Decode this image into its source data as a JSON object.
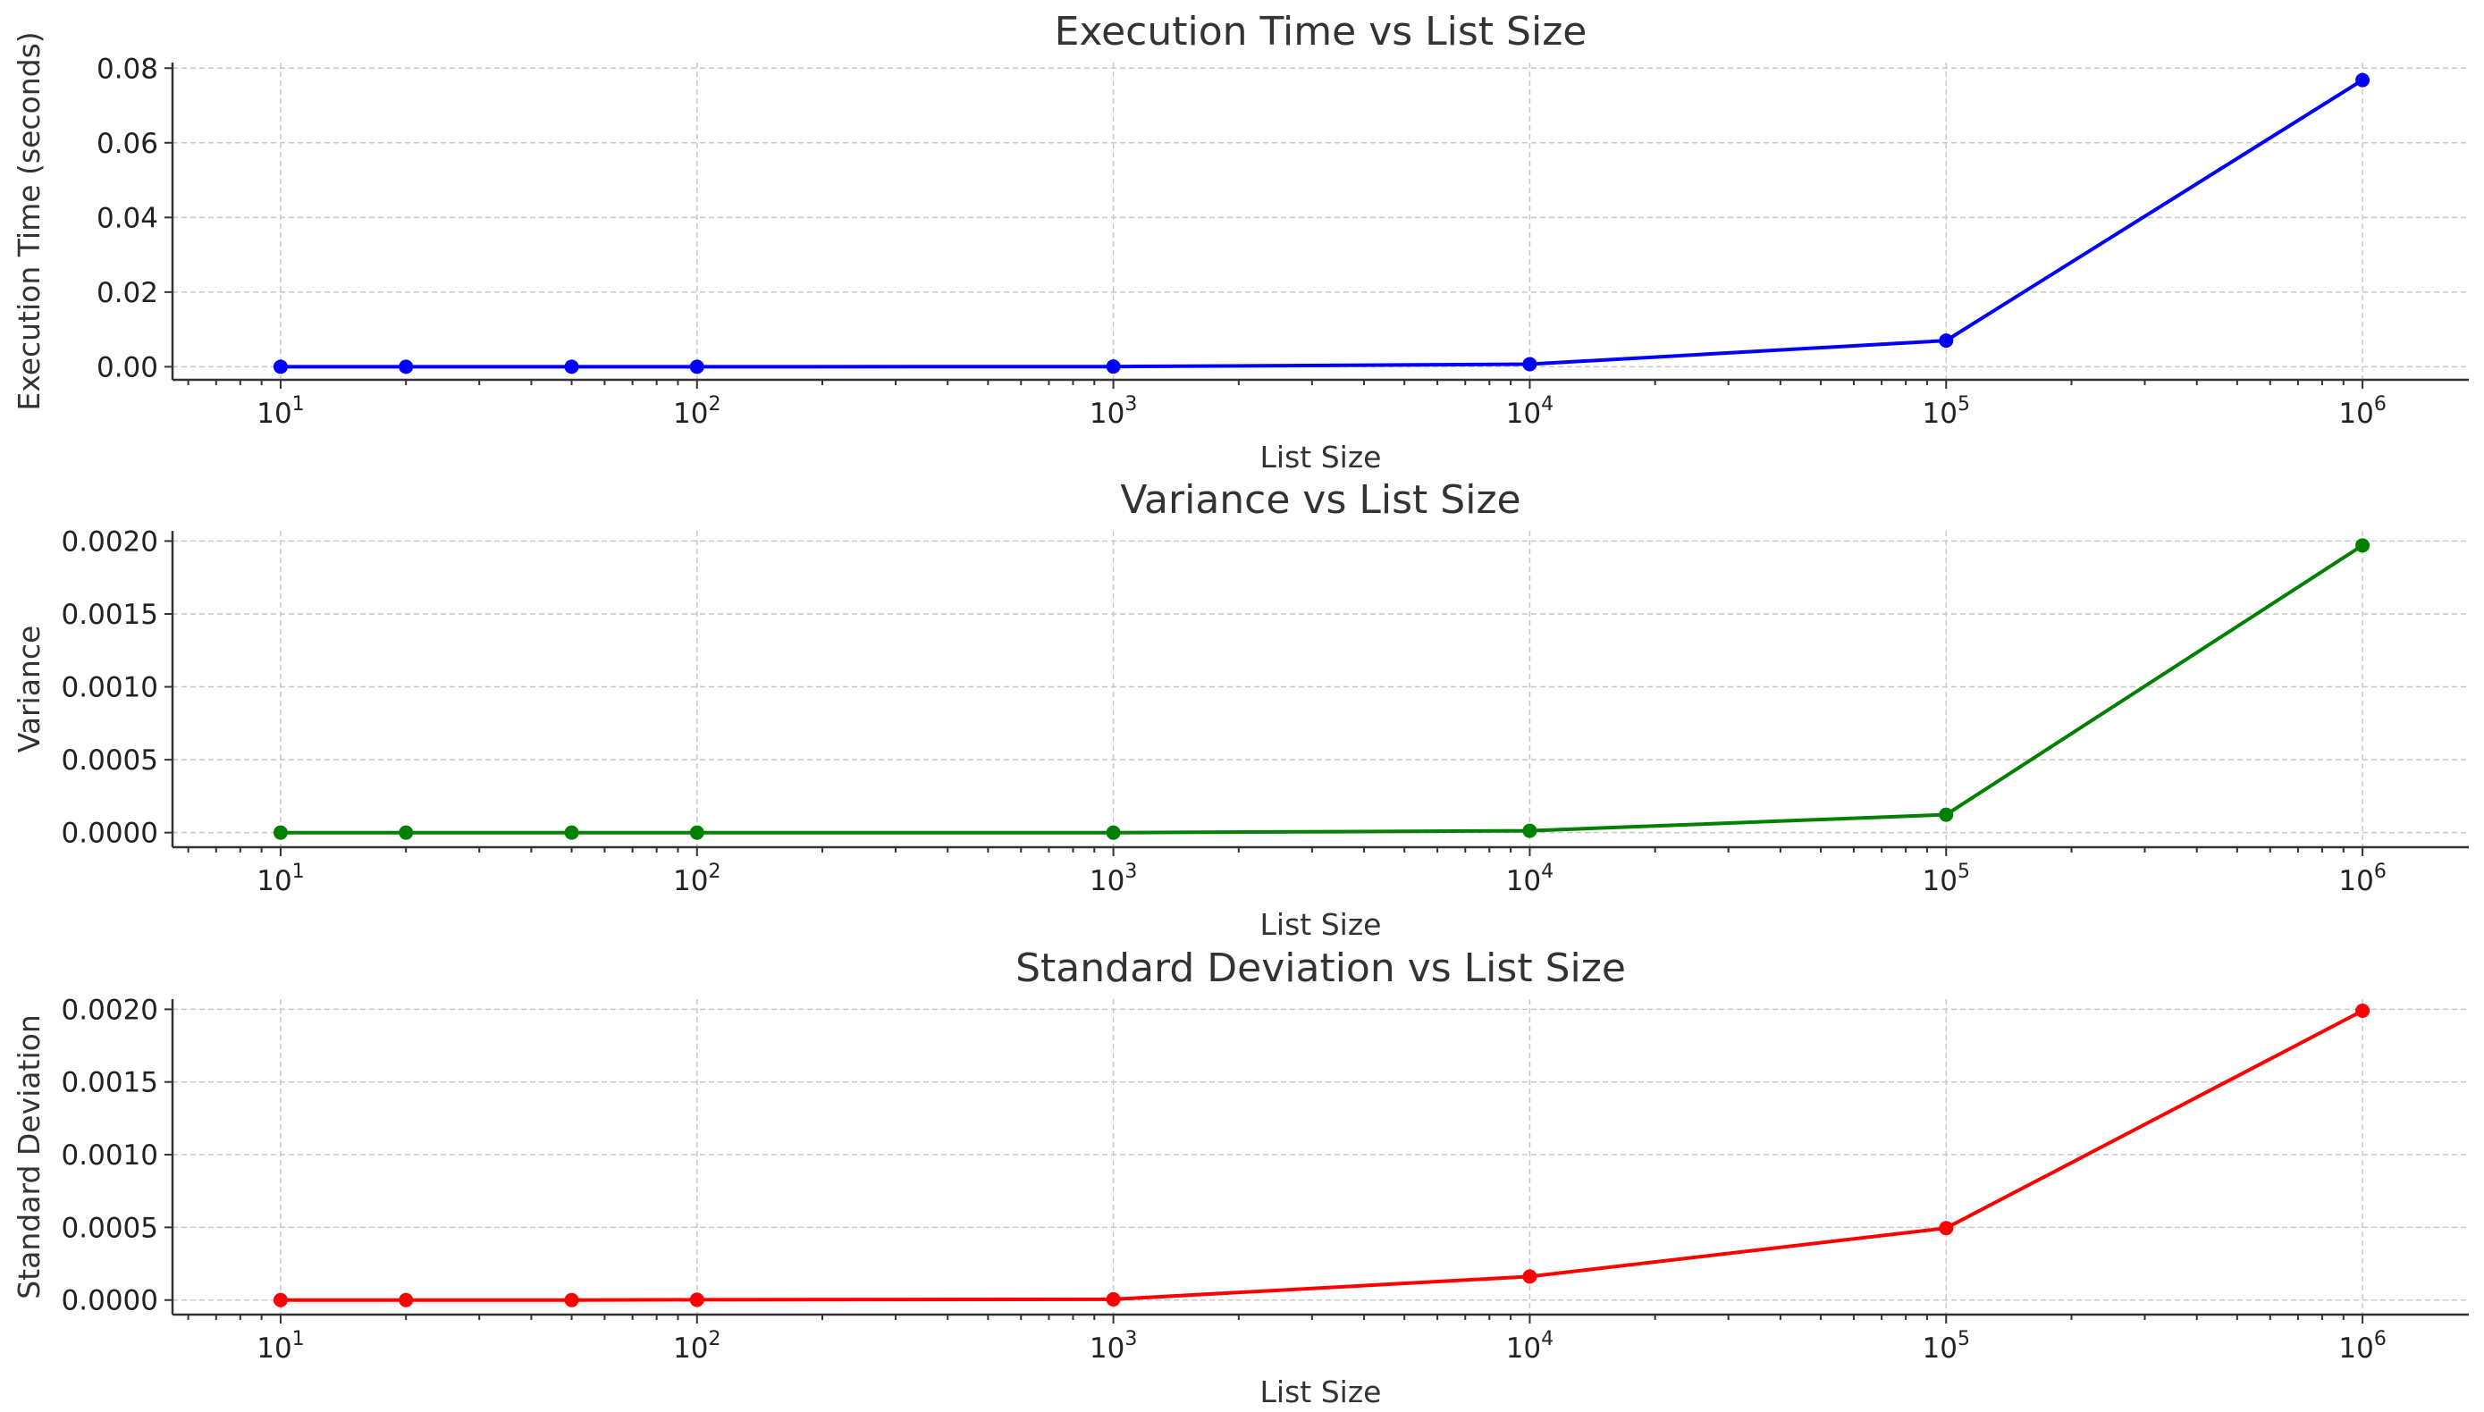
{
  "chart_data": [
    {
      "type": "line",
      "title": "Execution Time vs List Size",
      "xlabel": "List Size",
      "ylabel": "Execution Time (seconds)",
      "xscale": "log",
      "xlim": [
        5.5,
        1800000
      ],
      "ylim": [
        -0.0035,
        0.0815
      ],
      "xticks": [
        {
          "value": 10,
          "base": "10",
          "exp": "1"
        },
        {
          "value": 100,
          "base": "10",
          "exp": "2"
        },
        {
          "value": 1000,
          "base": "10",
          "exp": "3"
        },
        {
          "value": 10000,
          "base": "10",
          "exp": "4"
        },
        {
          "value": 100000,
          "base": "10",
          "exp": "5"
        },
        {
          "value": 1000000,
          "base": "10",
          "exp": "6"
        }
      ],
      "yticks": [
        {
          "value": 0.0,
          "label": "0.00"
        },
        {
          "value": 0.02,
          "label": "0.02"
        },
        {
          "value": 0.04,
          "label": "0.04"
        },
        {
          "value": 0.06,
          "label": "0.06"
        },
        {
          "value": 0.08,
          "label": "0.08"
        }
      ],
      "grid": true,
      "series": [
        {
          "color": "#0000ff",
          "x": [
            10,
            20,
            50,
            100,
            1000,
            10000,
            100000,
            1000000
          ],
          "y": [
            0.0,
            0.0,
            0.0,
            0.0,
            5e-05,
            0.0007,
            0.007,
            0.0768
          ]
        }
      ]
    },
    {
      "type": "line",
      "title": "Variance vs List Size",
      "xlabel": "List Size",
      "ylabel": "Variance",
      "xscale": "log",
      "xlim": [
        5.5,
        1800000
      ],
      "ylim": [
        -0.0001,
        0.00207
      ],
      "xticks": [
        {
          "value": 10,
          "base": "10",
          "exp": "1"
        },
        {
          "value": 100,
          "base": "10",
          "exp": "2"
        },
        {
          "value": 1000,
          "base": "10",
          "exp": "3"
        },
        {
          "value": 10000,
          "base": "10",
          "exp": "4"
        },
        {
          "value": 100000,
          "base": "10",
          "exp": "5"
        },
        {
          "value": 1000000,
          "base": "10",
          "exp": "6"
        }
      ],
      "yticks": [
        {
          "value": 0.0,
          "label": "0.0000"
        },
        {
          "value": 0.0005,
          "label": "0.0005"
        },
        {
          "value": 0.001,
          "label": "0.0010"
        },
        {
          "value": 0.0015,
          "label": "0.0015"
        },
        {
          "value": 0.002,
          "label": "0.0020"
        }
      ],
      "grid": true,
      "series": [
        {
          "color": "#008000",
          "x": [
            10,
            20,
            50,
            100,
            1000,
            10000,
            100000,
            1000000
          ],
          "y": [
            0.0,
            0.0,
            0.0,
            0.0,
            0.0,
            1.3e-05,
            0.000123,
            0.00197
          ]
        }
      ]
    },
    {
      "type": "line",
      "title": "Standard Deviation vs List Size",
      "xlabel": "List Size",
      "ylabel": "Standard Deviation",
      "xscale": "log",
      "xlim": [
        5.5,
        1800000
      ],
      "ylim": [
        -0.0001,
        0.00207
      ],
      "xticks": [
        {
          "value": 10,
          "base": "10",
          "exp": "1"
        },
        {
          "value": 100,
          "base": "10",
          "exp": "2"
        },
        {
          "value": 1000,
          "base": "10",
          "exp": "3"
        },
        {
          "value": 10000,
          "base": "10",
          "exp": "4"
        },
        {
          "value": 100000,
          "base": "10",
          "exp": "5"
        },
        {
          "value": 1000000,
          "base": "10",
          "exp": "6"
        }
      ],
      "yticks": [
        {
          "value": 0.0,
          "label": "0.0000"
        },
        {
          "value": 0.0005,
          "label": "0.0005"
        },
        {
          "value": 0.001,
          "label": "0.0010"
        },
        {
          "value": 0.0015,
          "label": "0.0015"
        },
        {
          "value": 0.002,
          "label": "0.0020"
        }
      ],
      "grid": true,
      "series": [
        {
          "color": "#ff0000",
          "x": [
            10,
            20,
            50,
            100,
            1000,
            10000,
            100000,
            1000000
          ],
          "y": [
            0.0,
            0.0,
            0.0,
            2e-06,
            5e-06,
            0.000162,
            0.000495,
            0.00199
          ]
        }
      ]
    }
  ]
}
